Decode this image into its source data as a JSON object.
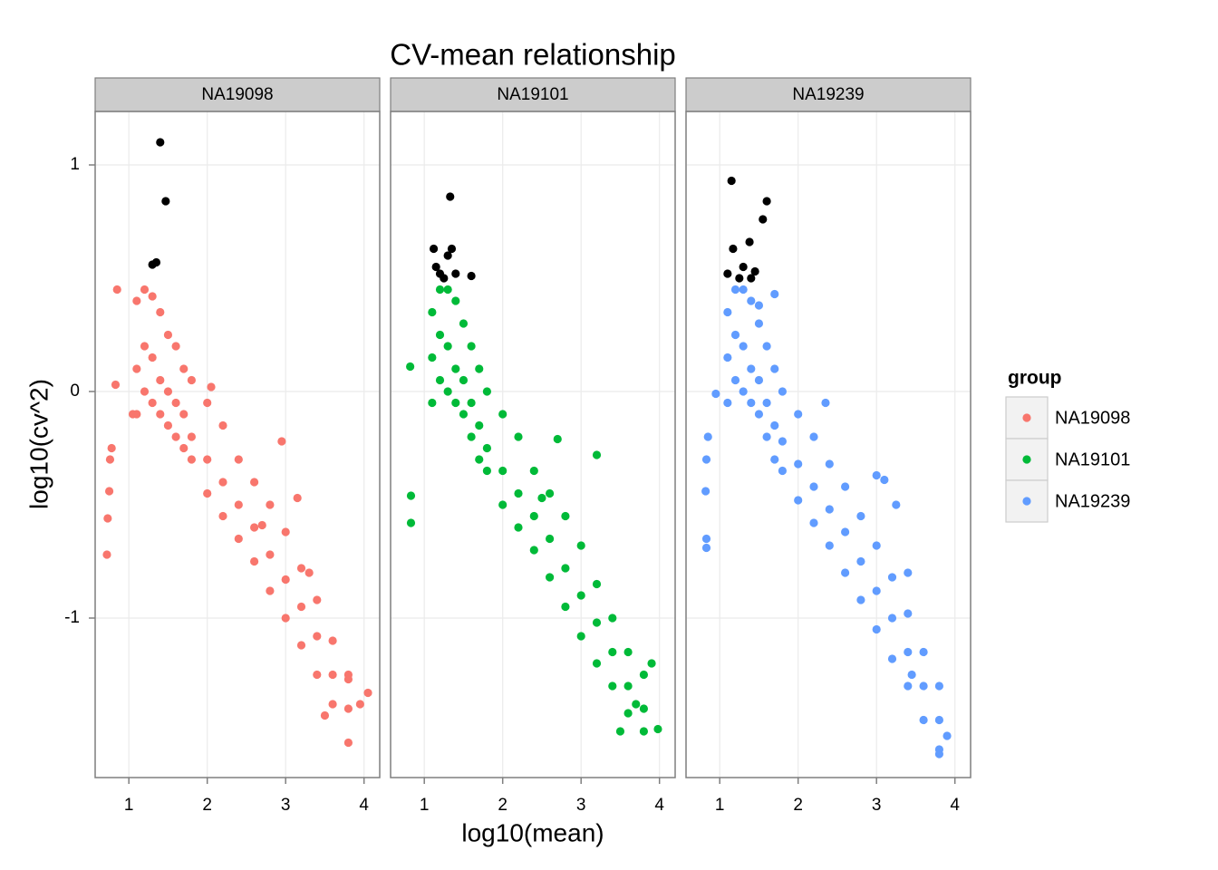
{
  "chart_data": {
    "type": "scatter",
    "title": "CV-mean relationship",
    "x_label": "log10(mean)",
    "y_label": "log10(cv^2)",
    "legend_title": "group",
    "xlim": [
      0.57,
      4.2
    ],
    "ylim": [
      -1.704,
      1.236
    ],
    "xticks": [
      1,
      2,
      3,
      4
    ],
    "yticks": [
      -1,
      0,
      1
    ],
    "grid": true,
    "legend": "right",
    "facets": [
      {
        "name": "NA19098",
        "color": "#F8766D",
        "x": [
          1.1,
          1.1,
          1.1,
          1.2,
          1.2,
          1.2,
          1.3,
          1.3,
          1.3,
          1.4,
          1.4,
          1.4,
          1.5,
          1.5,
          1.5,
          1.6,
          1.6,
          1.6,
          1.7,
          1.7,
          1.7,
          1.8,
          1.8,
          1.8,
          2.0,
          2.0,
          2.0,
          2.2,
          2.2,
          2.2,
          2.4,
          2.4,
          2.4,
          2.6,
          2.6,
          2.6,
          2.8,
          2.8,
          2.8,
          3.0,
          3.0,
          3.0,
          3.2,
          3.2,
          3.2,
          3.4,
          3.4,
          3.4,
          3.6,
          3.6,
          3.6,
          3.8,
          3.8,
          3.8,
          0.72,
          0.73,
          0.75,
          0.76,
          0.78,
          0.85,
          0.83,
          1.05,
          2.05,
          2.95,
          3.15,
          2.7,
          3.3,
          3.8,
          4.05,
          3.95,
          3.5
        ],
        "y": [
          0.4,
          0.1,
          -0.1,
          0.45,
          0.2,
          0.0,
          0.42,
          0.15,
          -0.05,
          0.35,
          0.05,
          -0.1,
          0.25,
          0.0,
          -0.15,
          0.2,
          -0.05,
          -0.2,
          0.1,
          -0.1,
          -0.25,
          0.05,
          -0.2,
          -0.3,
          -0.05,
          -0.3,
          -0.45,
          -0.15,
          -0.4,
          -0.55,
          -0.3,
          -0.5,
          -0.65,
          -0.4,
          -0.6,
          -0.75,
          -0.5,
          -0.72,
          -0.88,
          -0.62,
          -0.83,
          -1.0,
          -0.78,
          -0.95,
          -1.12,
          -0.92,
          -1.08,
          -1.25,
          -1.1,
          -1.25,
          -1.38,
          -1.25,
          -1.4,
          -1.55,
          -0.72,
          -0.56,
          -0.44,
          -0.3,
          -0.25,
          0.45,
          0.03,
          -0.1,
          0.02,
          -0.22,
          -0.47,
          -0.59,
          -0.8,
          -1.27,
          -1.33,
          -1.38,
          -1.43
        ],
        "highlight": {
          "color": "#000000",
          "x": [
            1.4,
            1.47,
            1.35,
            1.3
          ],
          "y": [
            1.1,
            0.84,
            0.57,
            0.56
          ]
        }
      },
      {
        "name": "NA19101",
        "color": "#00BA38",
        "x": [
          1.1,
          1.1,
          1.1,
          1.2,
          1.2,
          1.2,
          1.3,
          1.3,
          1.3,
          1.4,
          1.4,
          1.4,
          1.5,
          1.5,
          1.5,
          1.6,
          1.6,
          1.6,
          1.7,
          1.7,
          1.7,
          1.8,
          1.8,
          1.8,
          2.0,
          2.0,
          2.0,
          2.2,
          2.2,
          2.2,
          2.4,
          2.4,
          2.4,
          2.6,
          2.6,
          2.6,
          2.8,
          2.8,
          2.8,
          3.0,
          3.0,
          3.0,
          3.2,
          3.2,
          3.2,
          3.4,
          3.4,
          3.4,
          3.6,
          3.6,
          3.6,
          3.8,
          3.8,
          3.8,
          0.82,
          0.83,
          0.83,
          2.5,
          3.2,
          2.7,
          3.9,
          3.98,
          3.5,
          3.7
        ],
        "y": [
          0.35,
          0.15,
          -0.05,
          0.45,
          0.25,
          0.05,
          0.45,
          0.2,
          0.0,
          0.4,
          0.1,
          -0.05,
          0.3,
          0.05,
          -0.1,
          0.2,
          -0.05,
          -0.2,
          0.1,
          -0.15,
          -0.3,
          0.0,
          -0.25,
          -0.35,
          -0.1,
          -0.35,
          -0.5,
          -0.2,
          -0.45,
          -0.6,
          -0.35,
          -0.55,
          -0.7,
          -0.45,
          -0.65,
          -0.82,
          -0.55,
          -0.78,
          -0.95,
          -0.68,
          -0.9,
          -1.08,
          -0.85,
          -1.02,
          -1.2,
          -1.0,
          -1.15,
          -1.3,
          -1.15,
          -1.3,
          -1.42,
          -1.25,
          -1.4,
          -1.5,
          0.11,
          -0.46,
          -0.58,
          -0.47,
          -0.28,
          -0.21,
          -1.2,
          -1.49,
          -1.5,
          -1.38
        ],
        "highlight": {
          "color": "#000000",
          "x": [
            1.33,
            1.12,
            1.3,
            1.35,
            1.2,
            1.25,
            1.4,
            1.6,
            1.15
          ],
          "y": [
            0.86,
            0.63,
            0.6,
            0.63,
            0.52,
            0.5,
            0.52,
            0.51,
            0.55
          ]
        }
      },
      {
        "name": "NA19239",
        "color": "#619CFF",
        "x": [
          1.1,
          1.1,
          1.1,
          1.2,
          1.2,
          1.2,
          1.3,
          1.3,
          1.3,
          1.4,
          1.4,
          1.4,
          1.5,
          1.5,
          1.5,
          1.6,
          1.6,
          1.6,
          1.7,
          1.7,
          1.7,
          1.8,
          1.8,
          1.8,
          2.0,
          2.0,
          2.0,
          2.2,
          2.2,
          2.2,
          2.4,
          2.4,
          2.4,
          2.6,
          2.6,
          2.6,
          2.8,
          2.8,
          2.8,
          3.0,
          3.0,
          3.0,
          3.2,
          3.2,
          3.2,
          3.4,
          3.4,
          3.4,
          3.6,
          3.6,
          3.6,
          3.8,
          3.8,
          3.8,
          0.85,
          0.83,
          0.82,
          0.83,
          0.83,
          0.95,
          1.7,
          1.5,
          2.35,
          3.0,
          3.1,
          3.25,
          3.45,
          3.8,
          3.9,
          3.4
        ],
        "y": [
          0.35,
          0.15,
          -0.05,
          0.45,
          0.25,
          0.05,
          0.45,
          0.2,
          0.0,
          0.4,
          0.1,
          -0.05,
          0.3,
          0.05,
          -0.1,
          0.2,
          -0.05,
          -0.2,
          0.1,
          -0.15,
          -0.3,
          0.0,
          -0.22,
          -0.35,
          -0.1,
          -0.32,
          -0.48,
          -0.2,
          -0.42,
          -0.58,
          -0.32,
          -0.52,
          -0.68,
          -0.42,
          -0.62,
          -0.8,
          -0.55,
          -0.75,
          -0.92,
          -0.68,
          -0.88,
          -1.05,
          -0.82,
          -1.0,
          -1.18,
          -0.98,
          -1.15,
          -1.3,
          -1.15,
          -1.3,
          -1.45,
          -1.3,
          -1.45,
          -1.58,
          -0.2,
          -0.3,
          -0.44,
          -0.65,
          -0.69,
          -0.01,
          0.43,
          0.38,
          -0.05,
          -0.37,
          -0.39,
          -0.5,
          -1.25,
          -1.6,
          -1.52,
          -0.8
        ],
        "highlight": {
          "color": "#000000",
          "x": [
            1.15,
            1.38,
            1.6,
            1.55,
            1.17,
            1.3,
            1.1,
            1.25,
            1.4,
            1.45
          ],
          "y": [
            0.93,
            0.66,
            0.84,
            0.76,
            0.63,
            0.55,
            0.52,
            0.5,
            0.5,
            0.53
          ]
        }
      }
    ]
  }
}
